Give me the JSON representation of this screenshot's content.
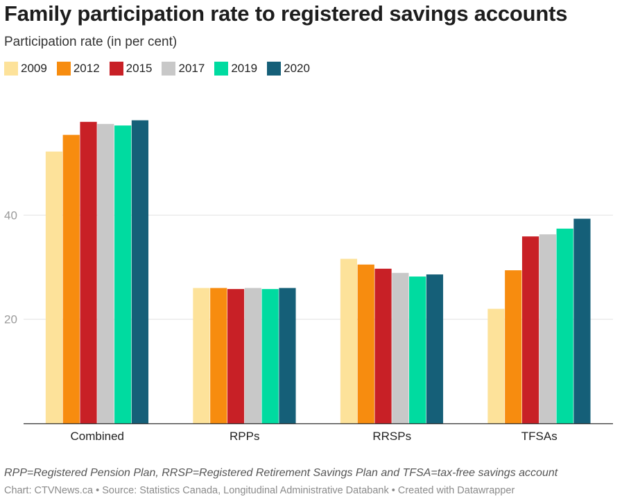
{
  "chart_data": {
    "type": "bar",
    "title": "Family participation rate to registered savings accounts",
    "subtitle": "Participation rate (in per cent)",
    "xlabel": "",
    "ylabel": "",
    "categories": [
      "Combined",
      "RPPs",
      "RRSPs",
      "TFSAs"
    ],
    "series": [
      {
        "name": "2009",
        "color": "#fde29a",
        "values": [
          52.2,
          26.0,
          31.6,
          22.0
        ]
      },
      {
        "name": "2012",
        "color": "#f78c0f",
        "values": [
          55.4,
          26.0,
          30.5,
          29.4
        ]
      },
      {
        "name": "2015",
        "color": "#c82026",
        "values": [
          57.9,
          25.8,
          29.7,
          35.9
        ]
      },
      {
        "name": "2017",
        "color": "#c8c8c8",
        "values": [
          57.5,
          26.0,
          28.9,
          36.3
        ]
      },
      {
        "name": "2019",
        "color": "#00dba0",
        "values": [
          57.2,
          25.8,
          28.2,
          37.4
        ]
      },
      {
        "name": "2020",
        "color": "#155f78",
        "values": [
          58.2,
          26.0,
          28.6,
          39.3
        ]
      }
    ],
    "ylim": [
      0,
      64
    ],
    "yticks": [
      20,
      40
    ],
    "grid": true,
    "legend_position": "top-left"
  },
  "notes": "RPP=Registered Pension Plan, RRSP=Registered Retirement Savings Plan and TFSA=tax-free savings account",
  "credit": "Chart: CTVNews.ca • Source: Statistics Canada, Longitudinal Administrative Databank • Created with Datawrapper"
}
